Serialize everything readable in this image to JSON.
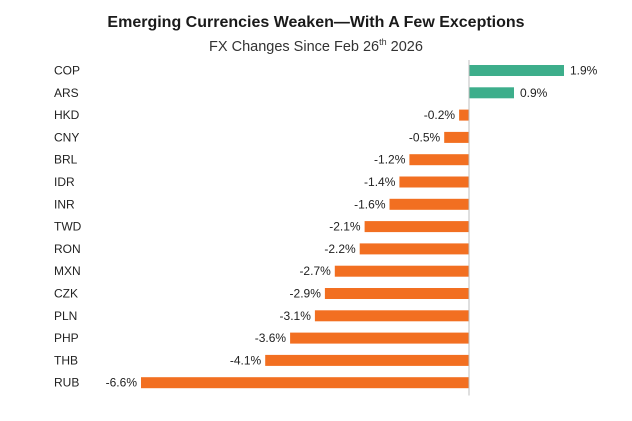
{
  "chart_data": {
    "type": "bar",
    "orientation": "horizontal",
    "title": "Emerging Currencies Weaken—With A Few Exceptions",
    "subtitle": {
      "prefix": "FX Changes Since Feb 26",
      "superscript": "th",
      "suffix": " 2026"
    },
    "value_unit": "%",
    "categories": [
      "COP",
      "ARS",
      "HKD",
      "CNY",
      "BRL",
      "IDR",
      "INR",
      "TWD",
      "RON",
      "MXN",
      "CZK",
      "PLN",
      "PHP",
      "THB",
      "RUB"
    ],
    "values": [
      1.9,
      0.9,
      -0.2,
      -0.5,
      -1.2,
      -1.4,
      -1.6,
      -2.1,
      -2.2,
      -2.7,
      -2.9,
      -3.1,
      -3.6,
      -4.1,
      -6.6
    ],
    "labels": [
      "1.9%",
      "0.9%",
      "-0.2%",
      "-0.5%",
      "-1.2%",
      "-1.4%",
      "-1.6%",
      "-2.1%",
      "-2.2%",
      "-2.7%",
      "-2.9%",
      "-3.1%",
      "-3.6%",
      "-4.1%",
      "-6.6%"
    ],
    "colors": {
      "positive": "#3dae8b",
      "negative": "#f26f21",
      "axis": "#bfbfbf"
    },
    "xlim": [
      -6.6,
      1.9
    ],
    "grid": false,
    "legend": "none"
  }
}
